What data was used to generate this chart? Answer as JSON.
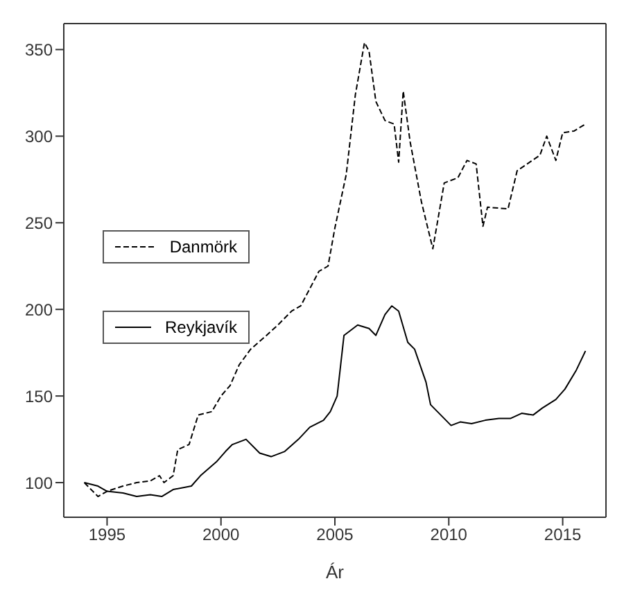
{
  "chart_data": {
    "type": "line",
    "xlabel": "Ár",
    "xlim": [
      1993.1,
      2016.9
    ],
    "ylim": [
      80,
      365
    ],
    "xticks": [
      1995,
      2000,
      2005,
      2010,
      2015
    ],
    "yticks": [
      100,
      150,
      200,
      250,
      300,
      350
    ],
    "legend": "left",
    "marker": "none",
    "series": [
      {
        "name": "Danmörk",
        "color": "#000000",
        "line_style": "dashed",
        "x": [
          1994,
          1994.6,
          1995,
          1995.7,
          1996.3,
          1996.9,
          1997.3,
          1997.5,
          1997.9,
          1998.1,
          1998.6,
          1999,
          1999.6,
          2000,
          2000.4,
          2000.8,
          2001.3,
          2002,
          2002.5,
          2003.1,
          2003.5,
          2003.9,
          2004.3,
          2004.7,
          2005,
          2005.5,
          2005.9,
          2006.3,
          2006.5,
          2006.8,
          2007.2,
          2007.6,
          2007.8,
          2008,
          2008.3,
          2008.8,
          2009.3,
          2009.8,
          2010.4,
          2010.8,
          2011.2,
          2011.5,
          2011.7,
          2012.6,
          2013,
          2014,
          2014.3,
          2014.7,
          2015,
          2015.5,
          2016
        ],
        "values": [
          100,
          92,
          95,
          98,
          100,
          101,
          104,
          100,
          104,
          119,
          122,
          139,
          141,
          150,
          156,
          168,
          177,
          185,
          191,
          199,
          202,
          212,
          222,
          225,
          247,
          278,
          324,
          354,
          349,
          320,
          309,
          307,
          285,
          326,
          297,
          262,
          235,
          273,
          276,
          286,
          284,
          248,
          259,
          258,
          280,
          289,
          300,
          286,
          302,
          303,
          307
        ]
      },
      {
        "name": "Reykjavík",
        "color": "#000000",
        "line_style": "solid",
        "x": [
          1994,
          1994.6,
          1995,
          1995.7,
          1996.3,
          1996.9,
          1997.4,
          1997.9,
          1998.7,
          1999.1,
          1999.8,
          2000.2,
          2000.5,
          2001.1,
          2001.7,
          2002.2,
          2002.8,
          2003.4,
          2003.9,
          2004.5,
          2004.8,
          2005.1,
          2005.4,
          2005.8,
          2006,
          2006.5,
          2006.8,
          2007.2,
          2007.5,
          2007.8,
          2008.2,
          2008.5,
          2009,
          2009.2,
          2009.5,
          2010.1,
          2010.5,
          2011,
          2011.6,
          2012.2,
          2012.7,
          2013.2,
          2013.7,
          2014.1,
          2014.7,
          2015.1,
          2015.6,
          2016
        ],
        "values": [
          100,
          98,
          95,
          94,
          92,
          93,
          92,
          96,
          98,
          104,
          112,
          118,
          122,
          125,
          117,
          115,
          118,
          125,
          132,
          136,
          141,
          150,
          185,
          189,
          191,
          189,
          185,
          197,
          202,
          199,
          181,
          177,
          158,
          145,
          141,
          133,
          135,
          134,
          136,
          137,
          137,
          140,
          139,
          143,
          148,
          154,
          165,
          176
        ]
      }
    ]
  }
}
